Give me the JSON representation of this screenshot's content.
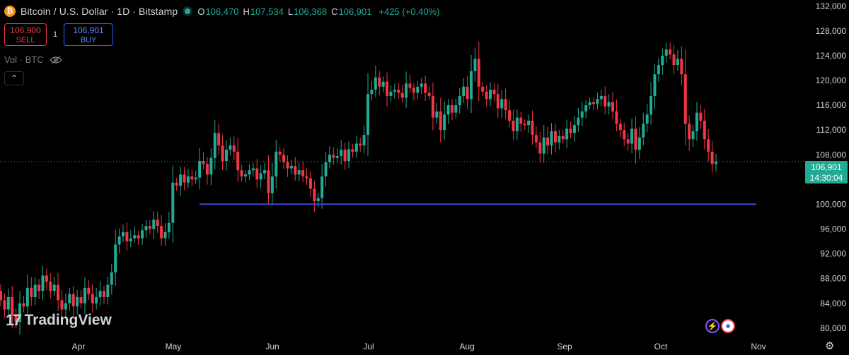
{
  "header": {
    "symbol": "Bitcoin / U.S. Dollar · 1D · Bitstamp",
    "coin_glyph": "₿",
    "o_label": "O",
    "o_value": "106,470",
    "h_label": "H",
    "h_value": "107,534",
    "l_label": "L",
    "l_value": "106,368",
    "c_label": "C",
    "c_value": "106,901",
    "change": "+425 (+0.40%)"
  },
  "trade": {
    "sell_price": "106,900",
    "sell_label": "SELL",
    "spread": "1",
    "buy_price": "106,901",
    "buy_label": "BUY"
  },
  "volume_label": "Vol · BTC",
  "collapse_glyph": "⌃",
  "logo": {
    "mark": "17",
    "text": "TradingView"
  },
  "price_tag": {
    "price": "106,901",
    "countdown": "14:30:04"
  },
  "colors": {
    "up": "#22ab94",
    "down": "#f23645",
    "line": "#3d4dd6",
    "bg": "#000000"
  },
  "chart_data": {
    "type": "candlestick",
    "title": "Bitcoin / U.S. Dollar · 1D · Bitstamp",
    "ylim": [
      78500,
      133000
    ],
    "y_ticks": [
      "80,000",
      "84,000",
      "88,000",
      "92,000",
      "96,000",
      "100,000",
      "104,000",
      "108,000",
      "112,000",
      "116,000",
      "120,000",
      "124,000",
      "128,000",
      "132,000"
    ],
    "x_labels": [
      "Apr",
      "May",
      "Jun",
      "Jul",
      "Aug",
      "Sep",
      "Oct",
      "Nov"
    ],
    "horizontal_line": 100000,
    "last_price": 106901,
    "closes": [
      84500,
      83000,
      85000,
      82000,
      81000,
      84000,
      83500,
      86500,
      85000,
      87000,
      86000,
      88500,
      87500,
      86000,
      87000,
      84500,
      83000,
      84000,
      85500,
      83500,
      85000,
      84000,
      86500,
      85500,
      84000,
      85000,
      86000,
      85000,
      87000,
      89000,
      93500,
      94800,
      95500,
      94000,
      94500,
      95000,
      94500,
      95800,
      96500,
      96000,
      97500,
      96500,
      94500,
      95500,
      97000,
      103500,
      103000,
      104800,
      103500,
      104500,
      104000,
      104300,
      107000,
      106500,
      104800,
      107500,
      111500,
      109500,
      107000,
      108800,
      109500,
      108500,
      105500,
      104500,
      104800,
      105500,
      105800,
      104000,
      105000,
      105500,
      101800,
      104500,
      108500,
      108000,
      106800,
      105800,
      106200,
      104800,
      105500,
      104500,
      104200,
      102500,
      100500,
      101000,
      104500,
      106800,
      108000,
      107500,
      107800,
      108800,
      107000,
      108900,
      108500,
      109800,
      109500,
      111200,
      117800,
      118500,
      120500,
      119000,
      119800,
      117500,
      118200,
      118500,
      118000,
      117200,
      119500,
      118800,
      118000,
      119000,
      119500,
      118000,
      117500,
      114000,
      115000,
      112000,
      114500,
      116000,
      114800,
      116000,
      117500,
      119000,
      117000,
      121500,
      123500,
      119000,
      118200,
      117000,
      118500,
      117800,
      115500,
      117000,
      115200,
      113500,
      111800,
      114000,
      113000,
      112800,
      113500,
      111200,
      110000,
      108200,
      110800,
      109500,
      111800,
      110000,
      111000,
      110500,
      112200,
      111500,
      112800,
      114000,
      115000,
      116000,
      116500,
      116200,
      117000,
      117500,
      115800,
      116500,
      115000,
      113000,
      112000,
      110500,
      109800,
      112200,
      108800,
      110800,
      113000,
      114500,
      117500,
      121000,
      122500,
      124000,
      125000,
      124200,
      122500,
      123500,
      121000,
      113000,
      110500,
      111800,
      114800,
      113500,
      110500,
      108500,
      106500,
      106901
    ]
  }
}
